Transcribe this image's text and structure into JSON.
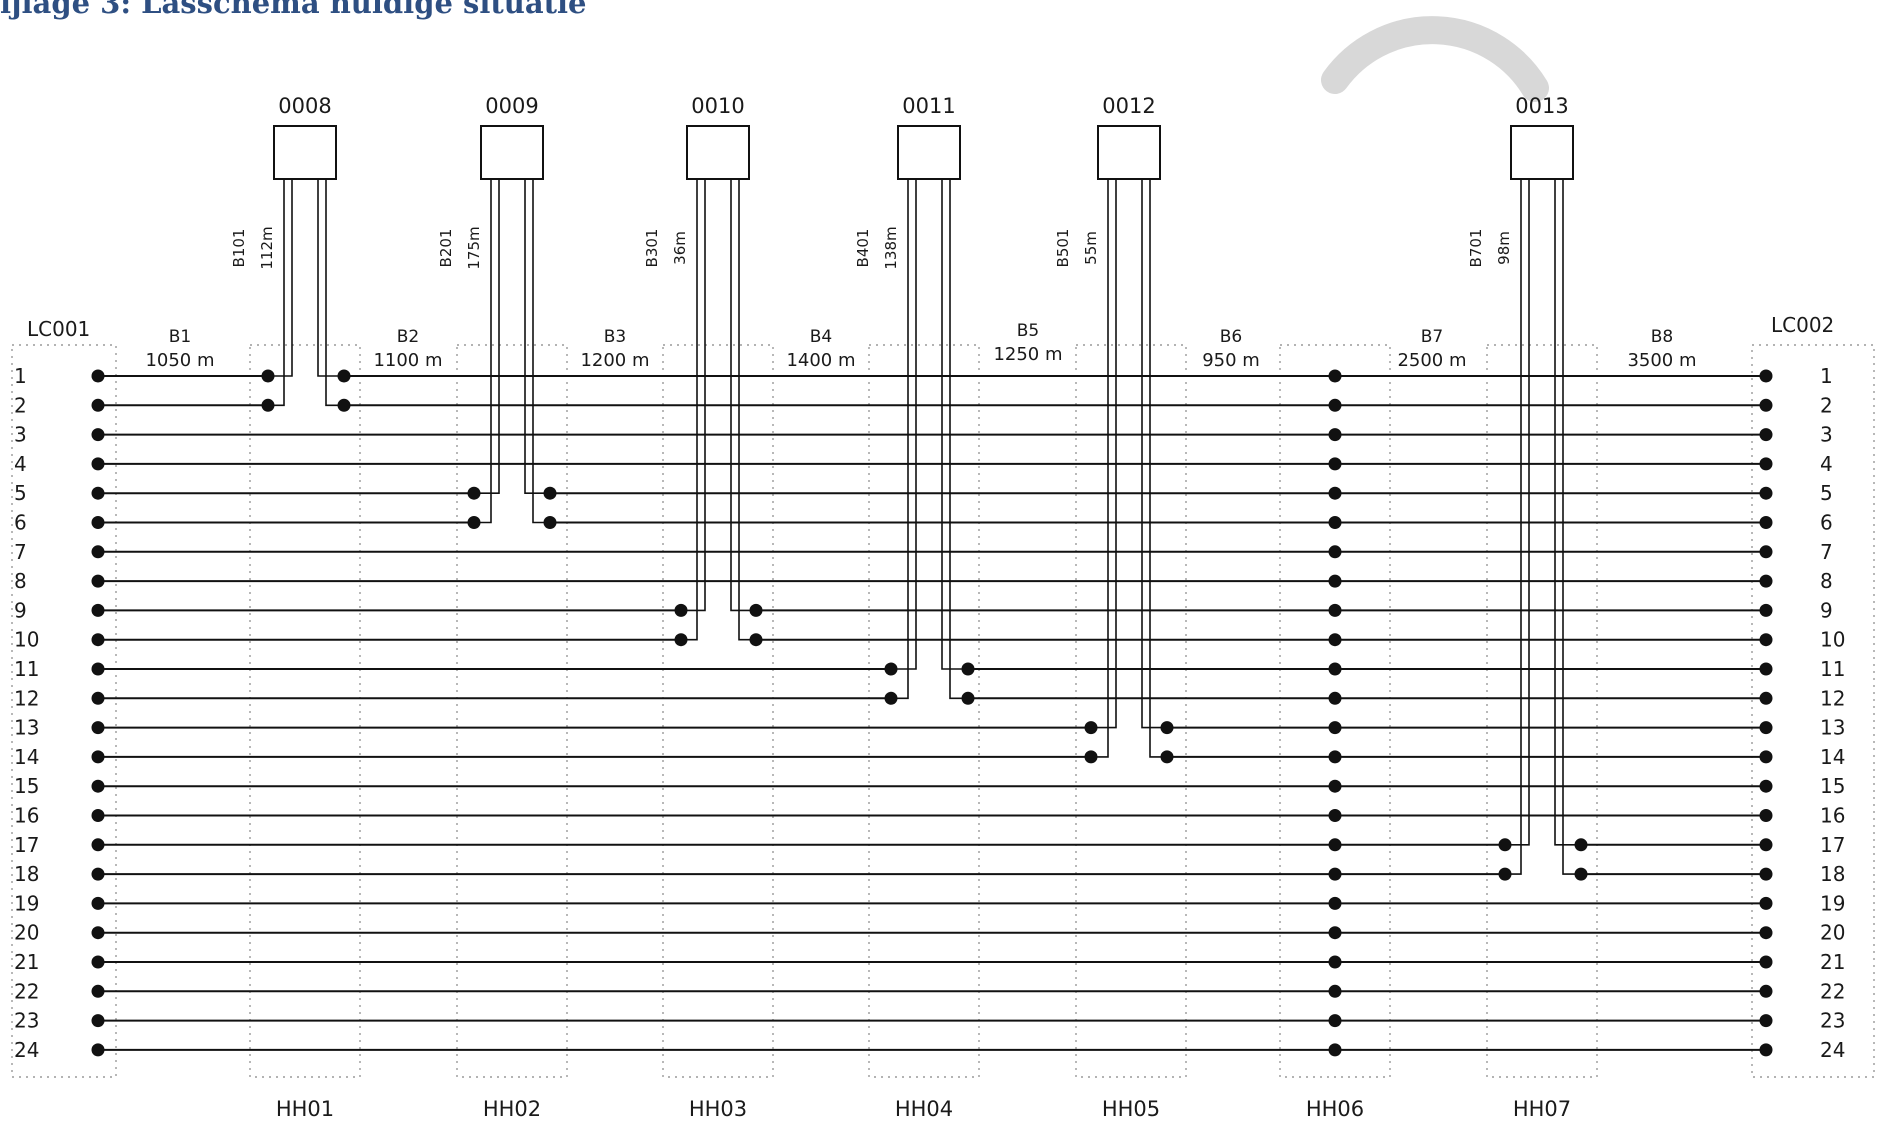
{
  "heading": "ijlage 3: Lasschema huidige situatie",
  "left_label": "LC001",
  "right_label": "LC002",
  "fibers": [
    "1",
    "2",
    "3",
    "4",
    "5",
    "6",
    "7",
    "8",
    "9",
    "10",
    "11",
    "12",
    "13",
    "14",
    "15",
    "16",
    "17",
    "18",
    "19",
    "20",
    "21",
    "22",
    "23",
    "24"
  ],
  "handholes": [
    "HH01",
    "HH02",
    "HH03",
    "HH04",
    "HH05",
    "HH06",
    "HH07"
  ],
  "segments": [
    {
      "name": "B1",
      "length": "1050 m"
    },
    {
      "name": "B2",
      "length": "1100 m"
    },
    {
      "name": "B3",
      "length": "1200 m"
    },
    {
      "name": "B4",
      "length": "1400 m"
    },
    {
      "name": "B5",
      "length": "1250 m"
    },
    {
      "name": "B6",
      "length": "950 m"
    },
    {
      "name": "B7",
      "length": "2500 m"
    },
    {
      "name": "B8",
      "length": "3500 m"
    }
  ],
  "sites": [
    {
      "id": "0008",
      "cable": "B101",
      "length": "112m",
      "fibers": [
        1,
        2
      ]
    },
    {
      "id": "0009",
      "cable": "B201",
      "length": "175m",
      "fibers": [
        5,
        6
      ]
    },
    {
      "id": "0010",
      "cable": "B301",
      "length": "36m",
      "fibers": [
        9,
        10
      ]
    },
    {
      "id": "0011",
      "cable": "B401",
      "length": "138m",
      "fibers": [
        11,
        12
      ]
    },
    {
      "id": "0012",
      "cable": "B501",
      "length": "55m",
      "fibers": [
        13,
        14
      ]
    },
    {
      "id": "0013",
      "cable": "B701",
      "length": "98m",
      "fibers": [
        17,
        18
      ]
    }
  ],
  "colors": {
    "heading": "#2e4f82",
    "line": "#111111",
    "zone": "#9a9a9a",
    "watermark": "#d8d8d8"
  }
}
